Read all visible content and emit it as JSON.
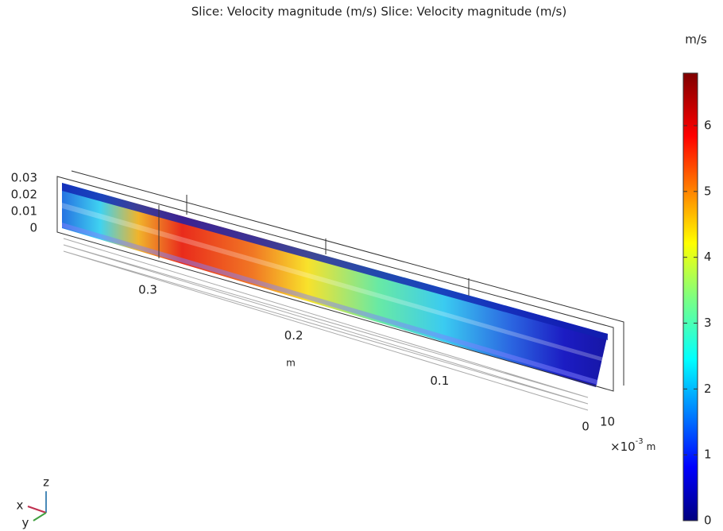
{
  "title": "Slice: Velocity magnitude (m/s)  Slice: Velocity magnitude (m/s)",
  "colorbar": {
    "unit": "m/s",
    "ticks": [
      0,
      1,
      2,
      3,
      4,
      5,
      6
    ]
  },
  "z_axis": {
    "ticks": [
      0.03,
      0.02,
      0.01,
      0
    ]
  },
  "x_axis": {
    "ticks": [
      0.3,
      0.2,
      0.1,
      0
    ],
    "label": "m"
  },
  "y_axis": {
    "ticks": [
      10
    ],
    "multiplier": "×10",
    "exponent": "-3",
    "unit": "m"
  },
  "triad": {
    "x": "x",
    "y": "y",
    "z": "z"
  }
}
